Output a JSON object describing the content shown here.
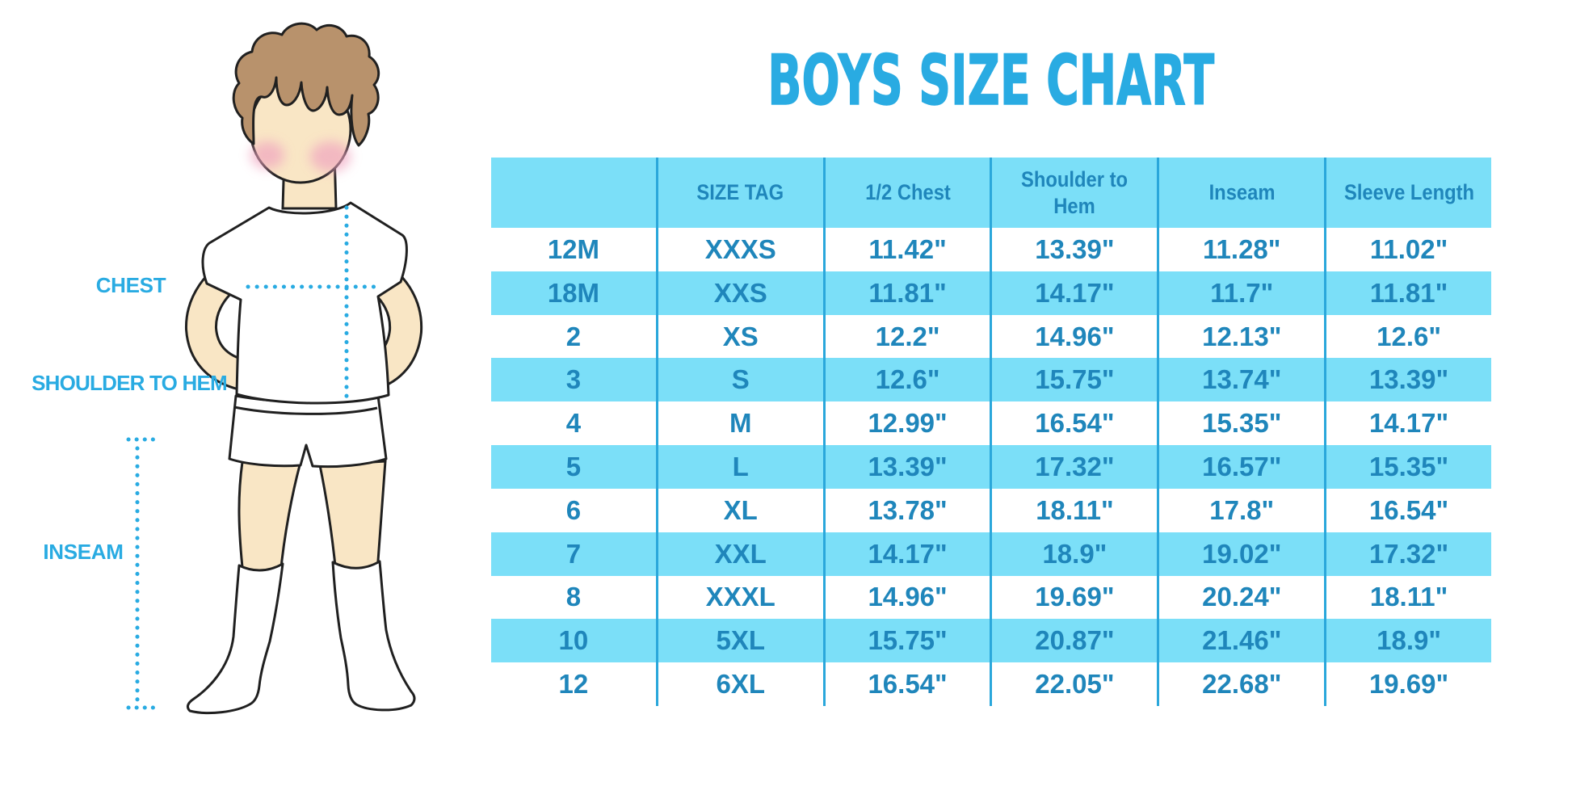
{
  "title": "BOYS SIZE CHART",
  "figure": {
    "labels": {
      "chest": "CHEST",
      "shoulder_to_hem": "SHOULDER TO HEM",
      "inseam": "INSEAM"
    }
  },
  "colors": {
    "accent_blue": "#29ABE2",
    "table_text": "#1F86BB",
    "row_cyan": "#7BDFF8",
    "separator": "#2AA7DB",
    "skin": "#F9E6C5",
    "hair": "#B8926C",
    "cheek": "#F2ACC3",
    "outline": "#202020"
  },
  "chart_data": {
    "type": "table",
    "columns": [
      "",
      "SIZE TAG",
      "1/2 Chest",
      "Shoulder to Hem",
      "Inseam",
      "Sleeve Length"
    ],
    "rows": [
      [
        "12M",
        "XXXS",
        "11.42\"",
        "13.39\"",
        "11.28\"",
        "11.02\""
      ],
      [
        "18M",
        "XXS",
        "11.81\"",
        "14.17\"",
        "11.7\"",
        "11.81\""
      ],
      [
        "2",
        "XS",
        "12.2\"",
        "14.96\"",
        "12.13\"",
        "12.6\""
      ],
      [
        "3",
        "S",
        "12.6\"",
        "15.75\"",
        "13.74\"",
        "13.39\""
      ],
      [
        "4",
        "M",
        "12.99\"",
        "16.54\"",
        "15.35\"",
        "14.17\""
      ],
      [
        "5",
        "L",
        "13.39\"",
        "17.32\"",
        "16.57\"",
        "15.35\""
      ],
      [
        "6",
        "XL",
        "13.78\"",
        "18.11\"",
        "17.8\"",
        "16.54\""
      ],
      [
        "7",
        "XXL",
        "14.17\"",
        "18.9\"",
        "19.02\"",
        "17.32\""
      ],
      [
        "8",
        "XXXL",
        "14.96\"",
        "19.69\"",
        "20.24\"",
        "18.11\""
      ],
      [
        "10",
        "5XL",
        "15.75\"",
        "20.87\"",
        "21.46\"",
        "18.9\""
      ],
      [
        "12",
        "6XL",
        "16.54\"",
        "22.05\"",
        "22.68\"",
        "19.69\""
      ]
    ]
  }
}
